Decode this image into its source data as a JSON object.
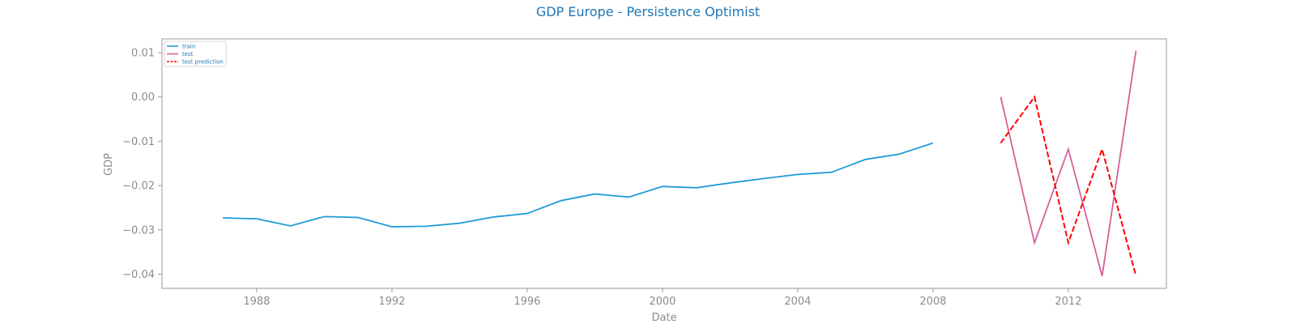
{
  "chart_data": {
    "type": "line",
    "title": "GDP Europe - Persistence Optimist",
    "xlabel": "Date",
    "ylabel": "GDP",
    "xlim": [
      1985.2,
      2014.9
    ],
    "ylim": [
      -0.0432,
      0.0131
    ],
    "x_ticks": [
      1988,
      1992,
      1996,
      2000,
      2004,
      2008,
      2012
    ],
    "x_tick_labels": [
      "1988",
      "1992",
      "1996",
      "2000",
      "2004",
      "2008",
      "2012"
    ],
    "y_ticks": [
      0.01,
      0.0,
      -0.01,
      -0.02,
      -0.03,
      -0.04
    ],
    "y_tick_labels": [
      "0.01",
      "0.00",
      "−0.01",
      "−0.02",
      "−0.03",
      "−0.04"
    ],
    "legend_position": "top-left",
    "grid": false,
    "series": [
      {
        "name": "train",
        "color": "#1f9bd7",
        "dash": "solid",
        "x": [
          1987,
          1988,
          1989,
          1990,
          1991,
          1992,
          1993,
          1994,
          1995,
          1996,
          1997,
          1998,
          1999,
          2000,
          2001,
          2002,
          2003,
          2004,
          2005,
          2006,
          2007,
          2008
        ],
        "values": [
          -0.0273,
          -0.0275,
          -0.0291,
          -0.027,
          -0.0272,
          -0.0293,
          -0.0292,
          -0.0285,
          -0.0271,
          -0.0263,
          -0.0234,
          -0.0219,
          -0.0226,
          -0.0202,
          -0.0205,
          -0.0194,
          -0.0184,
          -0.0175,
          -0.017,
          -0.0141,
          -0.0129,
          -0.0104
        ]
      },
      {
        "name": "test",
        "color": "#d6609a",
        "dash": "solid",
        "x": [
          2010,
          2011,
          2012,
          2013,
          2014
        ],
        "values": [
          0.0,
          -0.0329,
          -0.0118,
          -0.0404,
          0.0104
        ]
      },
      {
        "name": "test prediction",
        "color": "#ff0000",
        "dash": "dashed",
        "x": [
          2010,
          2011,
          2012,
          2013,
          2014
        ],
        "values": [
          -0.0104,
          0.0,
          -0.0329,
          -0.0118,
          -0.0404
        ]
      }
    ]
  }
}
